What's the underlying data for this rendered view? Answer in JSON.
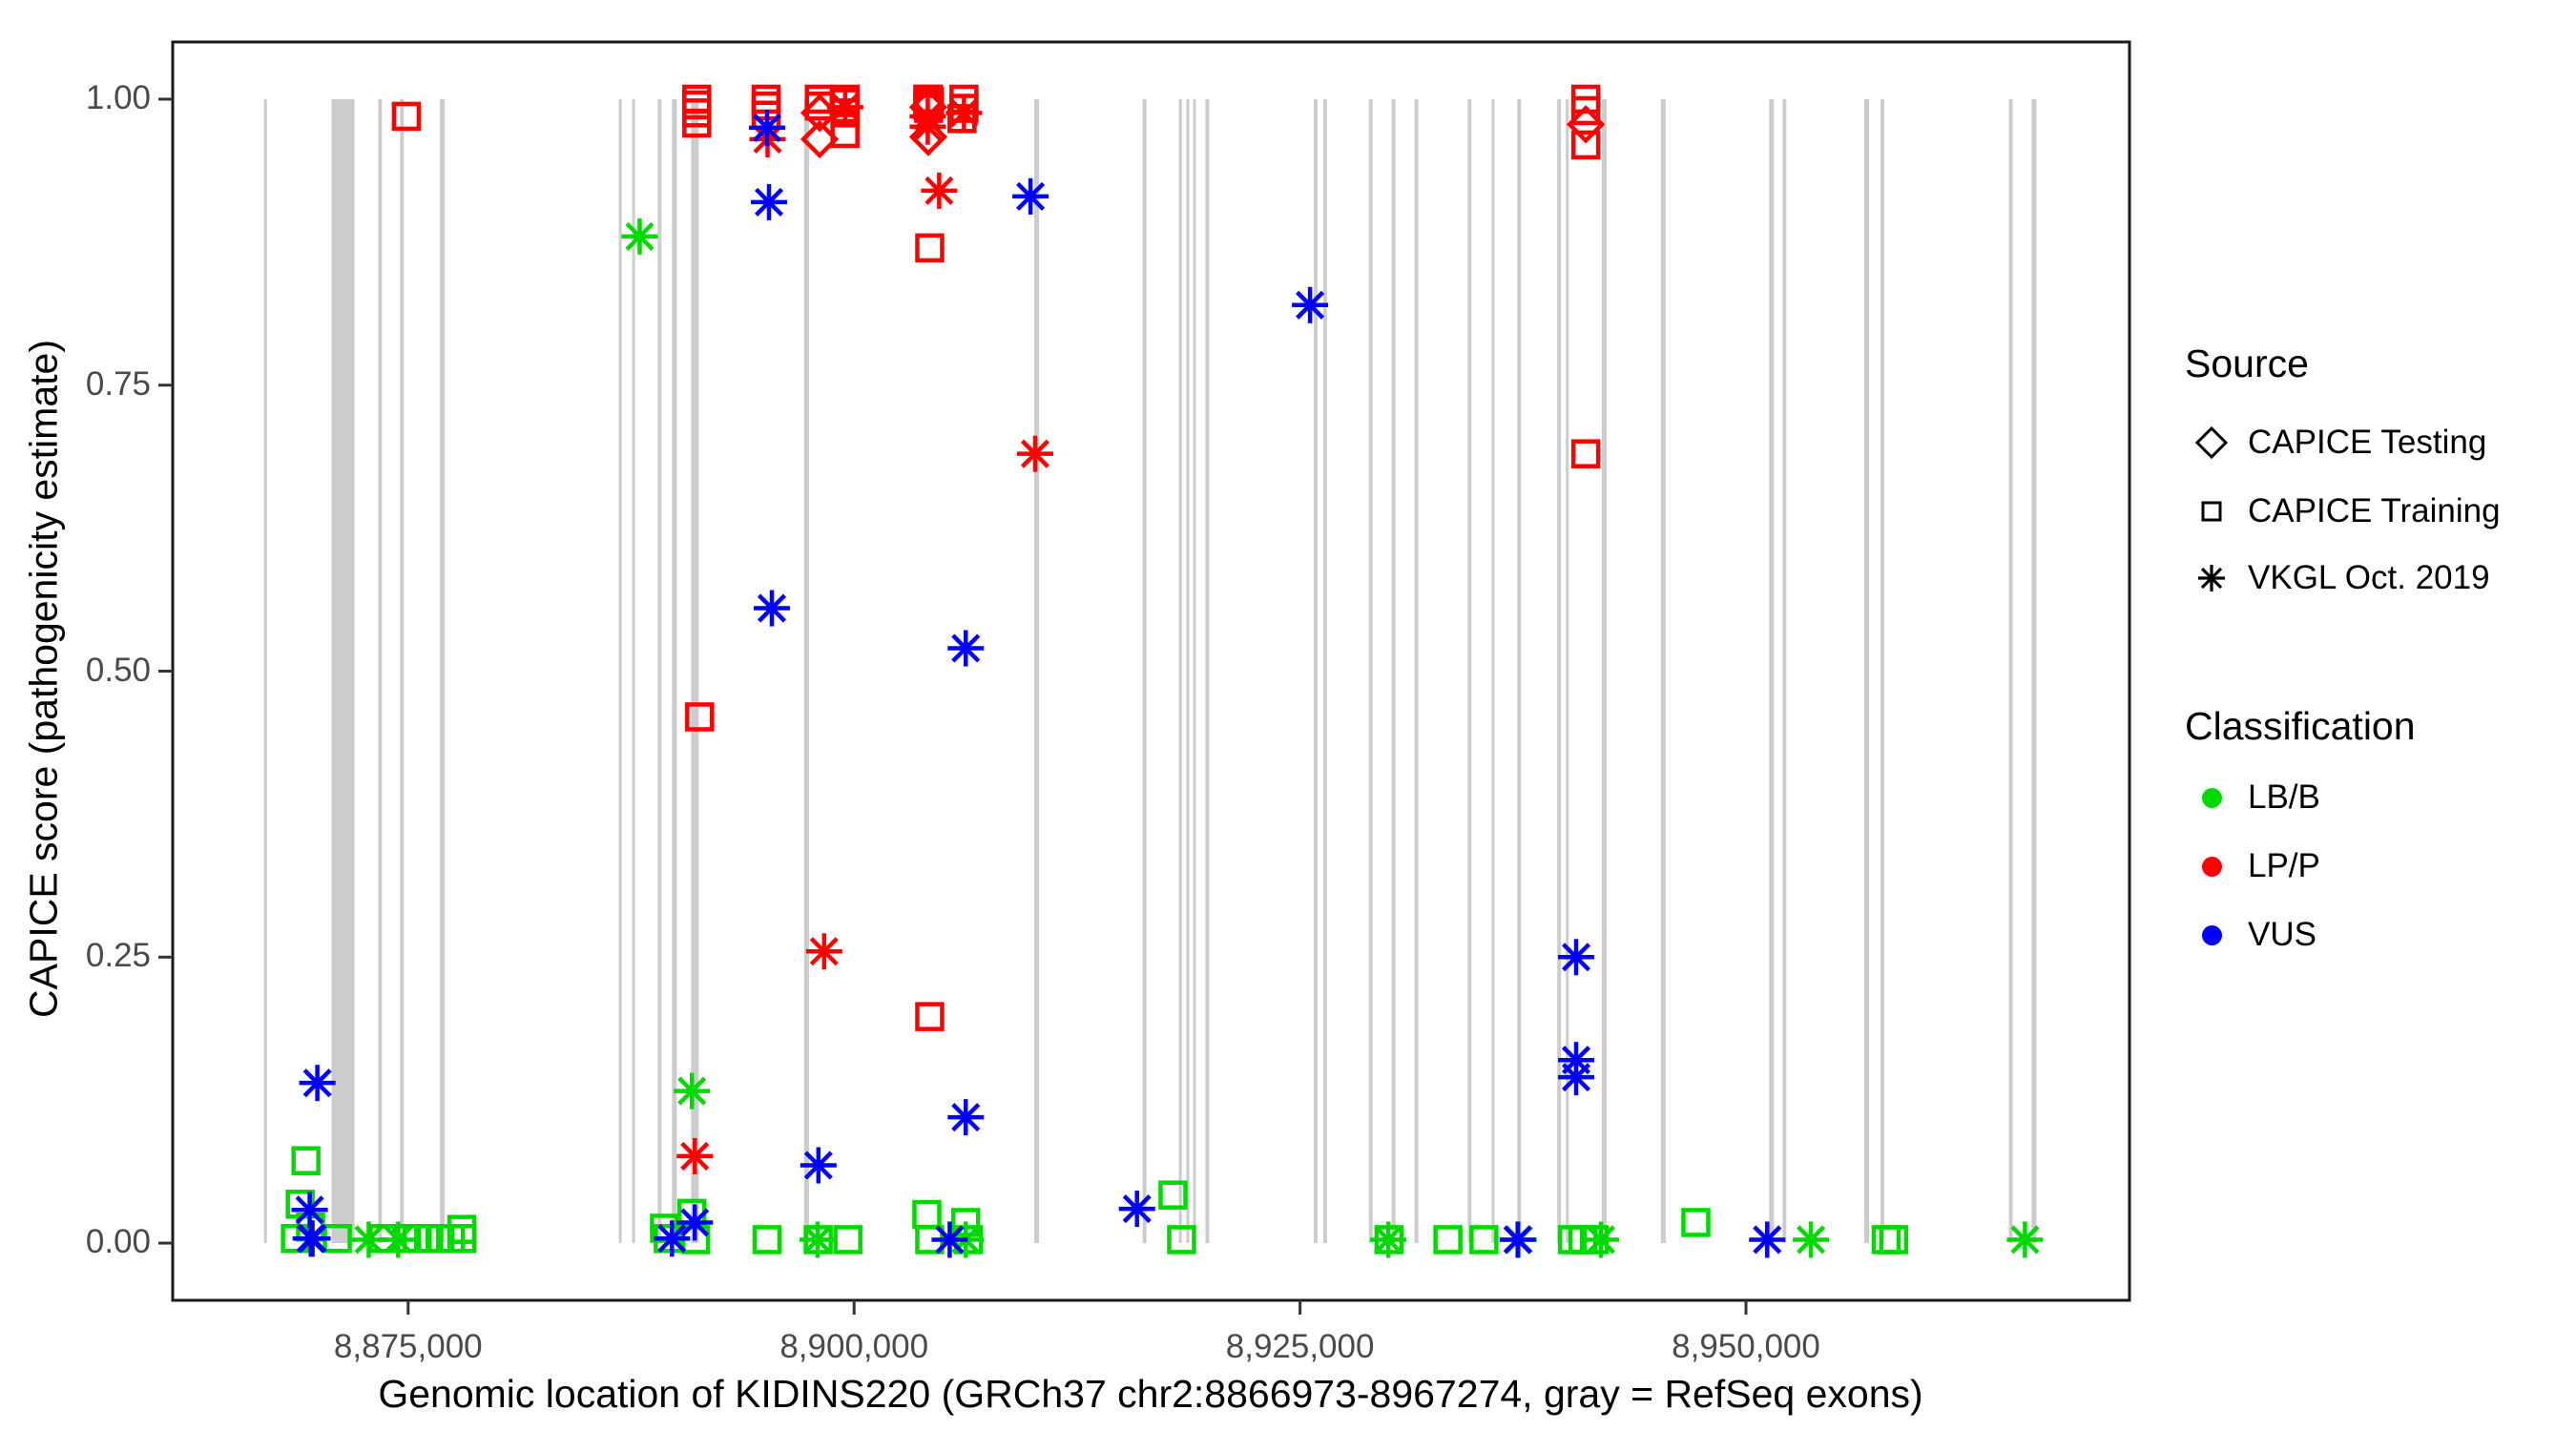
{
  "figure": {
    "y_axis": {
      "title": "CAPICE score (pathogenicity estimate)",
      "ticks": [
        {
          "value": 1.0,
          "label": "1.00"
        },
        {
          "value": 0.75,
          "label": "0.75"
        },
        {
          "value": 0.5,
          "label": "0.50"
        },
        {
          "value": 0.25,
          "label": "0.25"
        },
        {
          "value": 0.0,
          "label": "0.00"
        }
      ]
    },
    "x_axis": {
      "title": "Genomic location of KIDINS220 (GRCh37 chr2:8866973-8967274, gray = RefSeq exons)",
      "ticks": [
        {
          "bp": 8875000,
          "label": "8,875,000"
        },
        {
          "bp": 8900000,
          "label": "8,900,000"
        },
        {
          "bp": 8925000,
          "label": "8,925,000"
        },
        {
          "bp": 8950000,
          "label": "8,950,000"
        }
      ]
    },
    "legend": {
      "source": {
        "title": "Source",
        "items": [
          {
            "label": "CAPICE Testing",
            "shape": "diamond"
          },
          {
            "label": "CAPICE Training",
            "shape": "square"
          },
          {
            "label": "VKGL Oct. 2019",
            "shape": "asterisk"
          }
        ]
      },
      "classification": {
        "title": "Classification",
        "items": [
          {
            "label": "LB/B",
            "color": "#00d900"
          },
          {
            "label": "LP/P",
            "color": "#ff0000"
          },
          {
            "label": "VUS",
            "color": "#0000ff"
          }
        ]
      }
    }
  },
  "chart_data": {
    "type": "scatter",
    "title": "",
    "xlabel": "Genomic location of KIDINS220 (GRCh37 chr2:8866973-8967274, gray = RefSeq exons)",
    "ylabel": "CAPICE score (pathogenicity estimate)",
    "x_domain": [
      8861800,
      8971500
    ],
    "y_domain": [
      -0.05,
      1.05
    ],
    "grid": "off",
    "legend_position": "right",
    "exon_color": "#cccccc",
    "border_color": "#1a1a1a",
    "class_colors": {
      "LB/B": "#00d900",
      "LP/P": "#ff0000",
      "VUS": "#0000ff"
    },
    "shape_by_source": {
      "Testing": "diamond",
      "Training": "square",
      "VKGL": "asterisk"
    },
    "exons_bp": [
      [
        8866920,
        8867080
      ],
      [
        8870710,
        8871990
      ],
      [
        8873320,
        8873530
      ],
      [
        8874550,
        8874760
      ],
      [
        8876780,
        8877050
      ],
      [
        8886810,
        8886970
      ],
      [
        8887560,
        8887720
      ],
      [
        8888990,
        8889200
      ],
      [
        8889790,
        8890060
      ],
      [
        8890860,
        8891290
      ],
      [
        8897200,
        8897470
      ],
      [
        8910100,
        8910370
      ],
      [
        8916180,
        8916390
      ],
      [
        8918210,
        8918370
      ],
      [
        8918630,
        8918790
      ],
      [
        8919000,
        8919160
      ],
      [
        8919700,
        8919910
      ],
      [
        8925770,
        8925980
      ],
      [
        8926300,
        8926510
      ],
      [
        8928860,
        8929070
      ],
      [
        8930140,
        8930350
      ],
      [
        8931420,
        8931630
      ],
      [
        8934400,
        8934610
      ],
      [
        8935740,
        8935900
      ],
      [
        8937180,
        8937390
      ],
      [
        8939420,
        8939630
      ],
      [
        8939900,
        8940060
      ],
      [
        8941920,
        8942190
      ],
      [
        8945230,
        8945500
      ],
      [
        8951300,
        8951570
      ],
      [
        8952050,
        8952260
      ],
      [
        8956630,
        8956900
      ],
      [
        8957540,
        8957750
      ],
      [
        8964740,
        8964950
      ],
      [
        8966010,
        8966280
      ]
    ],
    "point_fields": [
      "bp",
      "score",
      "source",
      "classification"
    ],
    "points": [
      [
        8868950,
        0.034,
        "Training",
        "LB/B"
      ],
      [
        8869270,
        0.072,
        "Training",
        "LB/B"
      ],
      [
        8869530,
        0.014,
        "Training",
        "LB/B"
      ],
      [
        8868680,
        0.004,
        "Training",
        "LB/B"
      ],
      [
        8871030,
        0.004,
        "Training",
        "LB/B"
      ],
      [
        8873590,
        0.004,
        "Training",
        "LB/B"
      ],
      [
        8874920,
        0.004,
        "Training",
        "LB/B"
      ],
      [
        8875510,
        0.004,
        "Training",
        "LB/B"
      ],
      [
        8876150,
        0.004,
        "Training",
        "LB/B"
      ],
      [
        8876790,
        0.004,
        "Training",
        "LB/B"
      ],
      [
        8877370,
        0.004,
        "Training",
        "LB/B"
      ],
      [
        8878010,
        0.004,
        "Training",
        "LB/B"
      ],
      [
        8878010,
        0.012,
        "Training",
        "LB/B"
      ],
      [
        8889370,
        0.013,
        "Training",
        "LB/B"
      ],
      [
        8889580,
        0.004,
        "Training",
        "LB/B"
      ],
      [
        8890910,
        0.026,
        "Training",
        "LB/B"
      ],
      [
        8891120,
        0.003,
        "Training",
        "LB/B"
      ],
      [
        8895120,
        0.003,
        "Training",
        "LB/B"
      ],
      [
        8897990,
        0.003,
        "Training",
        "LB/B"
      ],
      [
        8899650,
        0.003,
        "Training",
        "LB/B"
      ],
      [
        8904080,
        0.025,
        "Training",
        "LB/B"
      ],
      [
        8904240,
        0.003,
        "Training",
        "LB/B"
      ],
      [
        8906260,
        0.018,
        "Training",
        "LB/B"
      ],
      [
        8906420,
        0.003,
        "Training",
        "LB/B"
      ],
      [
        8917880,
        0.042,
        "Training",
        "LB/B"
      ],
      [
        8918360,
        0.003,
        "Training",
        "LB/B"
      ],
      [
        8929990,
        0.003,
        "Training",
        "LB/B"
      ],
      [
        8933290,
        0.003,
        "Training",
        "LB/B"
      ],
      [
        8935310,
        0.003,
        "Training",
        "LB/B"
      ],
      [
        8940270,
        0.003,
        "Training",
        "LB/B"
      ],
      [
        8940860,
        0.003,
        "Training",
        "LB/B"
      ],
      [
        8941500,
        0.003,
        "Training",
        "LB/B"
      ],
      [
        8947190,
        0.018,
        "Training",
        "LB/B"
      ],
      [
        8957860,
        0.003,
        "Training",
        "LB/B"
      ],
      [
        8958280,
        0.003,
        "Training",
        "LB/B"
      ],
      [
        8872790,
        0.003,
        "VKGL",
        "LB/B"
      ],
      [
        8874440,
        0.003,
        "VKGL",
        "LB/B"
      ],
      [
        8887980,
        0.88,
        "VKGL",
        "LB/B"
      ],
      [
        8890910,
        0.133,
        "VKGL",
        "LB/B"
      ],
      [
        8897950,
        0.003,
        "VKGL",
        "LB/B"
      ],
      [
        8906260,
        0.003,
        "VKGL",
        "LB/B"
      ],
      [
        8929950,
        0.003,
        "VKGL",
        "LB/B"
      ],
      [
        8937260,
        0.003,
        "VKGL",
        "LB/B"
      ],
      [
        8941870,
        0.003,
        "VKGL",
        "LB/B"
      ],
      [
        8953640,
        0.003,
        "VKGL",
        "LB/B"
      ],
      [
        8965640,
        0.003,
        "VKGL",
        "LB/B"
      ],
      [
        8874900,
        0.985,
        "Training",
        "LP/P"
      ],
      [
        8891180,
        1.0,
        "Training",
        "LP/P"
      ],
      [
        8891180,
        0.995,
        "Training",
        "LP/P"
      ],
      [
        8891180,
        0.988,
        "Training",
        "LP/P"
      ],
      [
        8891180,
        0.979,
        "Training",
        "LP/P"
      ],
      [
        8891340,
        0.46,
        "Training",
        "LP/P"
      ],
      [
        8895070,
        1.0,
        "Training",
        "LP/P"
      ],
      [
        8895070,
        0.994,
        "Training",
        "LP/P"
      ],
      [
        8895070,
        0.986,
        "Training",
        "LP/P"
      ],
      [
        8898050,
        1.0,
        "Training",
        "LP/P"
      ],
      [
        8898050,
        0.994,
        "Training",
        "LP/P"
      ],
      [
        8899490,
        1.0,
        "Training",
        "LP/P"
      ],
      [
        8899490,
        0.997,
        "Training",
        "LP/P"
      ],
      [
        8899490,
        0.988,
        "Training",
        "LP/P"
      ],
      [
        8899490,
        0.97,
        "Training",
        "LP/P"
      ],
      [
        8904130,
        1.0,
        "Training",
        "LP/P"
      ],
      [
        8904180,
        1.0,
        "Training",
        "LP/P"
      ],
      [
        8904230,
        0.998,
        "Training",
        "LP/P"
      ],
      [
        8904130,
        0.995,
        "Training",
        "LP/P"
      ],
      [
        8904180,
        0.992,
        "Training",
        "LP/P"
      ],
      [
        8904240,
        0.87,
        "Training",
        "LP/P"
      ],
      [
        8904240,
        0.198,
        "Training",
        "LP/P"
      ],
      [
        8906050,
        0.983,
        "Training",
        "LP/P"
      ],
      [
        8906160,
        1.0,
        "Training",
        "LP/P"
      ],
      [
        8906160,
        0.992,
        "Training",
        "LP/P"
      ],
      [
        8941020,
        1.0,
        "Training",
        "LP/P"
      ],
      [
        8941020,
        0.99,
        "Training",
        "LP/P"
      ],
      [
        8941020,
        0.96,
        "Training",
        "LP/P"
      ],
      [
        8941020,
        0.69,
        "Training",
        "LP/P"
      ],
      [
        8898070,
        0.988,
        "Testing",
        "LP/P"
      ],
      [
        8898070,
        0.965,
        "Testing",
        "LP/P"
      ],
      [
        8904160,
        0.993,
        "Testing",
        "LP/P"
      ],
      [
        8904160,
        0.967,
        "Testing",
        "LP/P"
      ],
      [
        8941020,
        0.978,
        "Testing",
        "LP/P"
      ],
      [
        8891070,
        0.076,
        "VKGL",
        "LP/P"
      ],
      [
        8895150,
        0.965,
        "VKGL",
        "LP/P"
      ],
      [
        8898320,
        0.255,
        "VKGL",
        "LP/P"
      ],
      [
        8899500,
        0.993,
        "VKGL",
        "LP/P"
      ],
      [
        8904130,
        0.985,
        "VKGL",
        "LP/P"
      ],
      [
        8904130,
        0.976,
        "VKGL",
        "LP/P"
      ],
      [
        8904770,
        0.92,
        "VKGL",
        "LP/P"
      ],
      [
        8906160,
        0.988,
        "VKGL",
        "LP/P"
      ],
      [
        8910150,
        0.69,
        "VKGL",
        "LP/P"
      ],
      [
        8869480,
        0.029,
        "VKGL",
        "VUS"
      ],
      [
        8869910,
        0.14,
        "VKGL",
        "VUS"
      ],
      [
        8869540,
        0.004,
        "VKGL",
        "VUS"
      ],
      [
        8869590,
        0.004,
        "VKGL",
        "VUS"
      ],
      [
        8869640,
        0.004,
        "VKGL",
        "VUS"
      ],
      [
        8889790,
        0.004,
        "VKGL",
        "VUS"
      ],
      [
        8891070,
        0.018,
        "VKGL",
        "VUS"
      ],
      [
        8895120,
        0.975,
        "VKGL",
        "VUS"
      ],
      [
        8895230,
        0.91,
        "VKGL",
        "VUS"
      ],
      [
        8895390,
        0.555,
        "VKGL",
        "VUS"
      ],
      [
        8898000,
        0.068,
        "VKGL",
        "VUS"
      ],
      [
        8905360,
        0.003,
        "VKGL",
        "VUS"
      ],
      [
        8906260,
        0.52,
        "VKGL",
        "VUS"
      ],
      [
        8906260,
        0.11,
        "VKGL",
        "VUS"
      ],
      [
        8909890,
        0.915,
        "VKGL",
        "VUS"
      ],
      [
        8915860,
        0.03,
        "VKGL",
        "VUS"
      ],
      [
        8925560,
        0.82,
        "VKGL",
        "VUS"
      ],
      [
        8937200,
        0.003,
        "VKGL",
        "VUS"
      ],
      [
        8940480,
        0.25,
        "VKGL",
        "VUS"
      ],
      [
        8940480,
        0.16,
        "VKGL",
        "VUS"
      ],
      [
        8940480,
        0.145,
        "VKGL",
        "VUS"
      ],
      [
        8951190,
        0.003,
        "VKGL",
        "VUS"
      ]
    ]
  }
}
